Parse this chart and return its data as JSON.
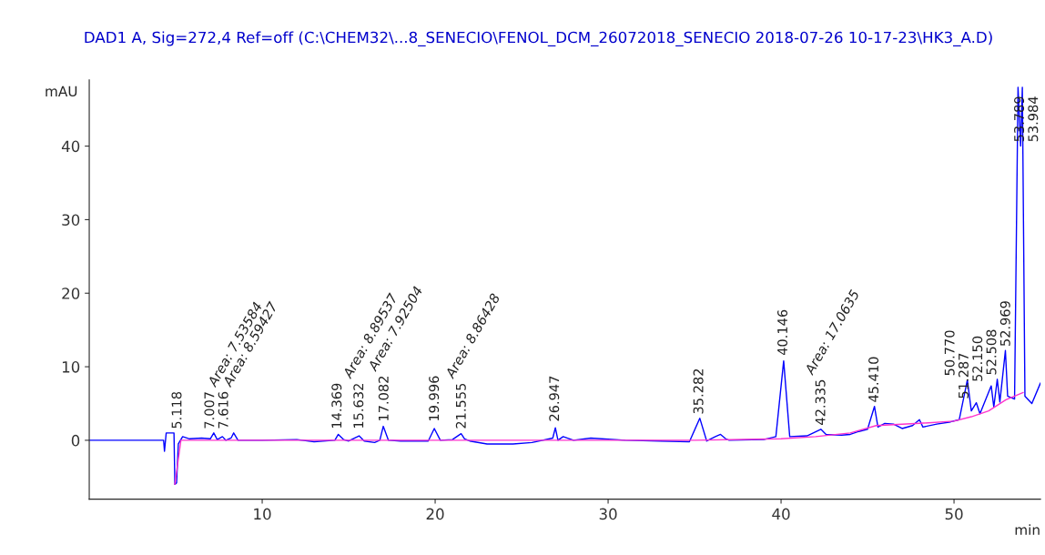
{
  "chart_data": {
    "type": "line",
    "title": "DAD1 A, Sig=272,4 Ref=off (C:\\CHEM32\\...8_SENECIO\\FENOL_DCM_26072018_SENECIO 2018-07-26 10-17-23\\HK3_A.D)",
    "xlabel": "min",
    "ylabel": "mAU",
    "xlim": [
      0,
      55
    ],
    "xticks": [
      10,
      20,
      30,
      40,
      50
    ],
    "ylim": [
      -8,
      49
    ],
    "yticks": [
      0,
      10,
      20,
      30,
      40
    ],
    "grid": false,
    "legend": false,
    "marker": "none",
    "line_style": "solid",
    "series": [
      {
        "color": "#0000ff",
        "x": [
          0,
          4.3,
          4.35,
          4.45,
          4.9,
          4.95,
          5.05,
          5.15,
          5.4,
          5.8,
          6.5,
          7.0,
          7.2,
          7.4,
          7.7,
          7.9,
          8.2,
          8.35,
          8.6,
          10,
          12,
          13,
          14.2,
          14.4,
          14.7,
          15,
          15.6,
          15.9,
          16.5,
          16.8,
          17.0,
          17.3,
          18,
          19.6,
          19.95,
          20.3,
          21.0,
          21.5,
          21.7,
          22,
          23,
          24.5,
          25.6,
          26.8,
          26.95,
          27.1,
          27.4,
          28,
          29,
          31,
          33,
          34.7,
          35.3,
          35.7,
          36.2,
          36.5,
          36.8,
          37,
          39,
          39.7,
          40.15,
          40.5,
          41.5,
          42.3,
          42.6,
          43.5,
          44,
          44.5,
          45,
          45.4,
          45.6,
          46,
          46.5,
          47,
          47.6,
          48,
          48.2,
          49,
          49.8,
          50.3,
          50.77,
          51.0,
          51.29,
          51.5,
          52.15,
          52.3,
          52.5,
          52.65,
          52.97,
          53.1,
          53.5,
          53.7,
          53.85,
          53.95,
          54.1,
          54.5,
          55
        ],
        "values": [
          0,
          0,
          -1.5,
          1,
          1,
          -6,
          -5.8,
          -0.5,
          0.5,
          0.2,
          0.3,
          0.2,
          1.0,
          0.1,
          0.5,
          0,
          0.3,
          1.0,
          0,
          0,
          0.1,
          -0.2,
          0,
          0.8,
          0.1,
          -0.1,
          0.6,
          -0.1,
          -0.3,
          0,
          1.9,
          0,
          -0.1,
          -0.1,
          1.6,
          0,
          0.1,
          0.9,
          0.2,
          -0.1,
          -0.5,
          -0.5,
          -0.3,
          0.3,
          1.7,
          0,
          0.5,
          0,
          0.3,
          0,
          -0.1,
          -0.2,
          3.0,
          -0.1,
          0.5,
          0.8,
          0.2,
          0,
          0.1,
          0.5,
          10.8,
          0.5,
          0.6,
          1.5,
          0.8,
          0.7,
          0.8,
          1.2,
          1.5,
          4.6,
          1.8,
          2.3,
          2.2,
          1.6,
          2.0,
          2.8,
          1.8,
          2.2,
          2.5,
          2.8,
          8.2,
          4.0,
          5.1,
          3.6,
          7.4,
          4.5,
          8.3,
          5.2,
          12.2,
          6.0,
          5.6,
          48,
          40,
          48,
          6.0,
          5.0,
          7.8
        ]
      },
      {
        "color": "#ff33cc",
        "x": [
          4.95,
          5.3,
          7,
          14,
          20,
          27,
          35,
          40,
          42,
          44,
          45.5,
          48,
          50,
          51,
          52,
          53,
          54
        ],
        "values": [
          -6,
          0,
          0,
          0,
          0,
          0,
          0,
          0.2,
          0.5,
          1,
          2,
          2.3,
          2.6,
          3.2,
          4,
          5.5,
          6.5
        ]
      }
    ],
    "annotations": [
      {
        "text": "5.118",
        "x": 5.118,
        "y": 1
      },
      {
        "text": "7.007",
        "x": 7.007,
        "y": 1
      },
      {
        "text": "7.616",
        "x": 7.616,
        "y": 1
      },
      "Area: 7.53584",
      "Area: 8.59427",
      {
        "text": "14.369",
        "x": 14.369,
        "y": 1
      },
      {
        "text": "15.632",
        "x": 15.632,
        "y": 1
      },
      "Area: 8.89537",
      {
        "text": "17.082",
        "x": 17.082,
        "y": 2
      },
      "Area: 7.92504",
      {
        "text": "19.996",
        "x": 19.996,
        "y": 2
      },
      {
        "text": "21.555",
        "x": 21.555,
        "y": 1
      },
      "Area: 8.86428",
      {
        "text": "26.947",
        "x": 26.947,
        "y": 2
      },
      {
        "text": "35.282",
        "x": 35.282,
        "y": 3
      },
      {
        "text": "40.146",
        "x": 40.146,
        "y": 11
      },
      {
        "text": "42.335",
        "x": 42.335,
        "y": 1.5
      },
      "Area: 17.0635",
      {
        "text": "45.410",
        "x": 45.41,
        "y": 4.6
      },
      {
        "text": "50.770",
        "x": 50.77,
        "y": 8.2
      },
      {
        "text": "51.287",
        "x": 51.287,
        "y": 5.1
      },
      {
        "text": "52.150",
        "x": 52.15,
        "y": 7.4
      },
      {
        "text": "52.508",
        "x": 52.508,
        "y": 8.3
      },
      {
        "text": "52.969",
        "x": 52.969,
        "y": 12.2
      },
      {
        "text": "53.789",
        "x": 53.789,
        "y": 40
      },
      {
        "text": "53.984",
        "x": 53.984,
        "y": 40
      }
    ]
  }
}
